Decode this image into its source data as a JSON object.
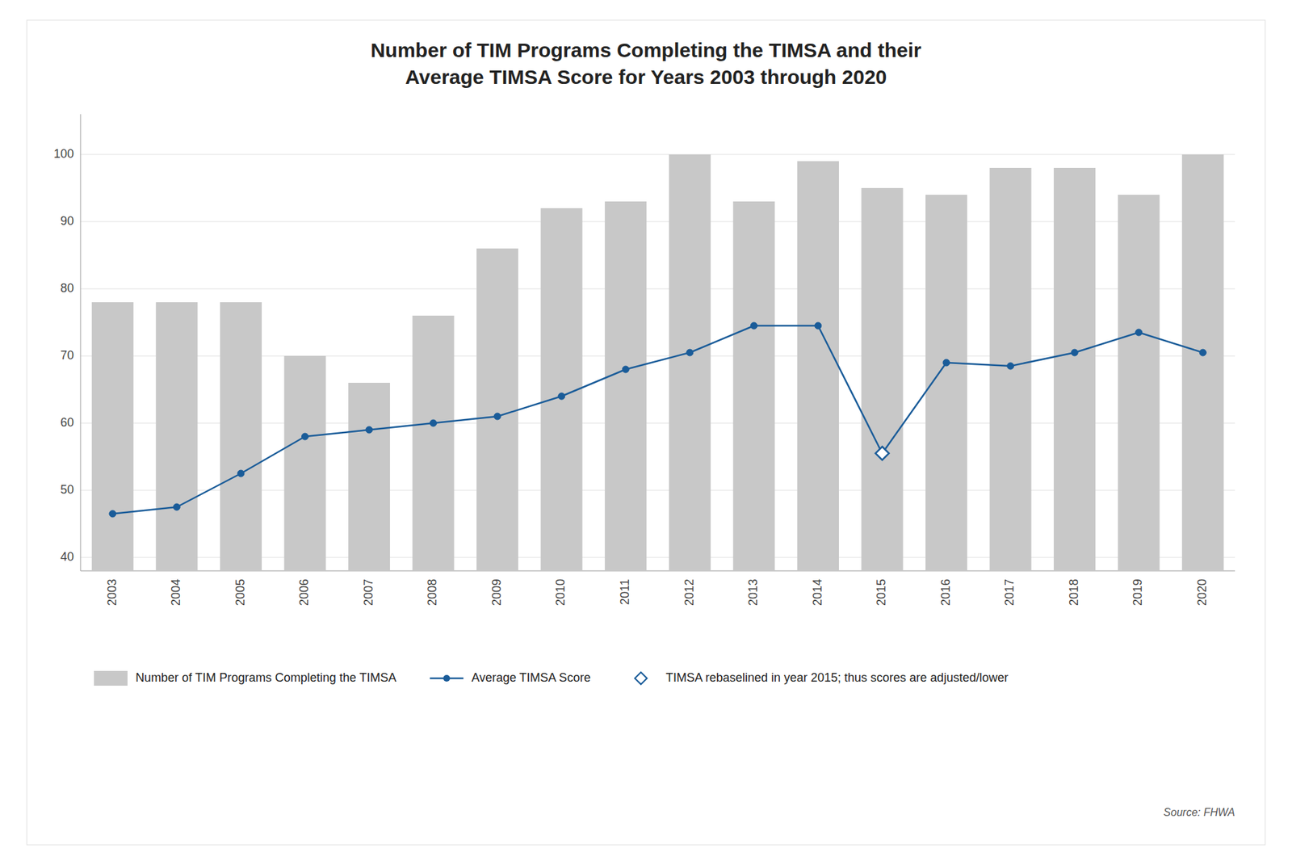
{
  "chart_data": {
    "type": "bar",
    "title": "Number of TIM Programs Completing the TIMSA and their",
    "subtitle": "Average TIMSA Score for Years 2003 through 2020",
    "categories": [
      "2003",
      "2004",
      "2005",
      "2006",
      "2007",
      "2008",
      "2009",
      "2010",
      "2011",
      "2012",
      "2013",
      "2014",
      "2015",
      "2016",
      "2017",
      "2018",
      "2019",
      "2020"
    ],
    "series": [
      {
        "name": "Number of TIM Programs Completing the TIMSA",
        "type": "bar",
        "color": "#C8C8C8",
        "values": [
          78,
          78,
          78,
          70,
          66,
          76,
          86,
          92,
          93,
          100,
          93,
          99,
          95,
          94,
          98,
          98,
          94,
          100
        ]
      },
      {
        "name": "Average TIMSA Score",
        "type": "line",
        "color": "#1A5C99",
        "marker": "circle",
        "values": [
          46.5,
          47.5,
          52.5,
          58,
          59,
          60,
          61,
          64,
          68,
          70.5,
          74.5,
          74.5,
          55.5,
          69,
          68.5,
          70.5,
          73.5,
          70.5
        ]
      },
      {
        "name": "TIMSA rebaselined in year 2015; thus scores are adjusted/lower",
        "type": "scatter",
        "color": "#1A5C99",
        "marker": "diamond",
        "values": [
          null,
          null,
          null,
          null,
          null,
          null,
          null,
          null,
          null,
          null,
          null,
          null,
          55.5,
          null,
          null,
          null,
          null,
          null
        ]
      }
    ],
    "annotations": [
      "Source: FHWA"
    ],
    "ylim": [
      38,
      106
    ],
    "yticks": [
      40,
      50,
      60,
      70,
      80,
      90,
      100
    ],
    "grid": true,
    "legend": "bottom"
  }
}
